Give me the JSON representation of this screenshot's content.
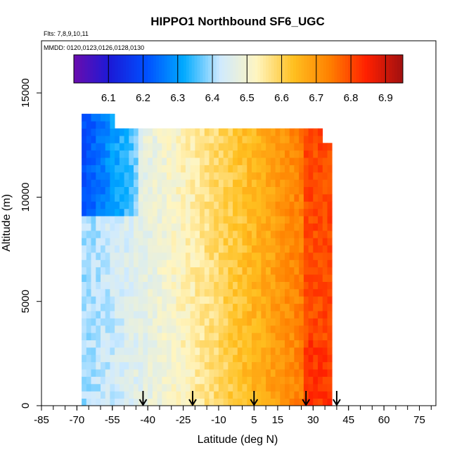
{
  "chart_data": {
    "type": "heatmap",
    "title": "HIPPO1 Northbound SF6_UGC",
    "flights_label": "Flts: 7,8,9,10,11",
    "mmdd_label": "MMDD: 0120,0123,0126,0128,0130",
    "xlabel": "Latitude (deg N)",
    "ylabel": "Altitude (m)",
    "xlim": [
      -85,
      82
    ],
    "ylim": [
      0,
      17500
    ],
    "x_ticks": [
      "-85",
      "-70",
      "-55",
      "-40",
      "-25",
      "-10",
      "5",
      "15",
      "30",
      "45",
      "60",
      "75"
    ],
    "x_tick_values": [
      -85,
      -70,
      -55,
      -40,
      -25,
      -10,
      5,
      15,
      30,
      45,
      60,
      75
    ],
    "x_minor_tick_step": 5,
    "y_ticks": [
      "0",
      "5000",
      "10000",
      "15000"
    ],
    "y_tick_values": [
      0,
      5000,
      10000,
      15000
    ],
    "colorbar": {
      "vmin": 6.0,
      "vmax": 6.95,
      "labels": [
        "6.1",
        "6.2",
        "6.3",
        "6.4",
        "6.5",
        "6.6",
        "6.7",
        "6.8",
        "6.9"
      ],
      "label_values": [
        6.1,
        6.2,
        6.3,
        6.4,
        6.5,
        6.6,
        6.7,
        6.8,
        6.9
      ],
      "colors": [
        "#6a0dad",
        "#1a1ad8",
        "#0050ff",
        "#00aaff",
        "#cfeaff",
        "#fff5c0",
        "#ffc020",
        "#ff8000",
        "#ff2000",
        "#a01010"
      ]
    },
    "profile_latitudes": [
      -42,
      -21,
      5,
      27,
      40
    ],
    "field_summary": {
      "lat_range": [
        -68,
        37
      ],
      "alt_range": [
        0,
        13900
      ],
      "south_upper_value": 6.2,
      "south_lower_value": 6.4,
      "tropics_value": 6.55,
      "north_value": 6.8
    },
    "grid": false,
    "legend": "colorbar-top"
  }
}
